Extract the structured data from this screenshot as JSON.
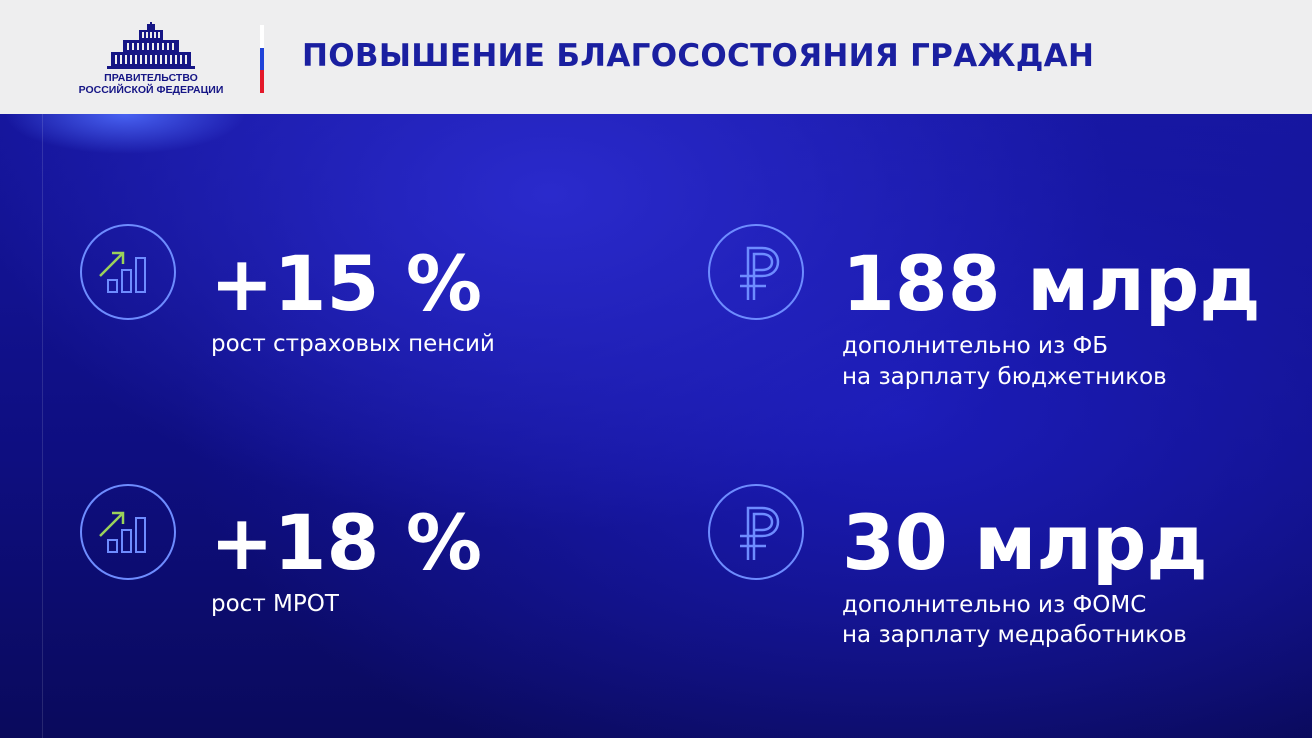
{
  "header": {
    "org_line1": "ПРАВИТЕЛЬСТВО",
    "org_line2": "РОССИЙСКОЙ ФЕДЕРАЦИИ",
    "title": "ПОВЫШЕНИЕ БЛАГОСОСТОЯНИЯ ГРАЖДАН"
  },
  "stats": [
    {
      "value": "+15 %",
      "desc_line1": "рост страховых пенсий",
      "icon": "growth-chart-icon"
    },
    {
      "value": "188 млрд",
      "desc_line1": "дополнительно из ФБ",
      "desc_line2": "на зарплату бюджетников",
      "icon": "ruble-icon"
    },
    {
      "value": "+18 %",
      "desc_line1": "рост МРОТ",
      "icon": "growth-chart-icon"
    },
    {
      "value": "30 млрд",
      "desc_line1": "дополнительно из ФОМС",
      "desc_line2": "на зарплату медработников",
      "icon": "ruble-icon"
    }
  ],
  "colors": {
    "title": "#1a1fa0",
    "header_bg": "#eeeeef",
    "background": "#12128f",
    "icon_stroke": "#6e8cff",
    "arrow": "#9bd25a"
  }
}
